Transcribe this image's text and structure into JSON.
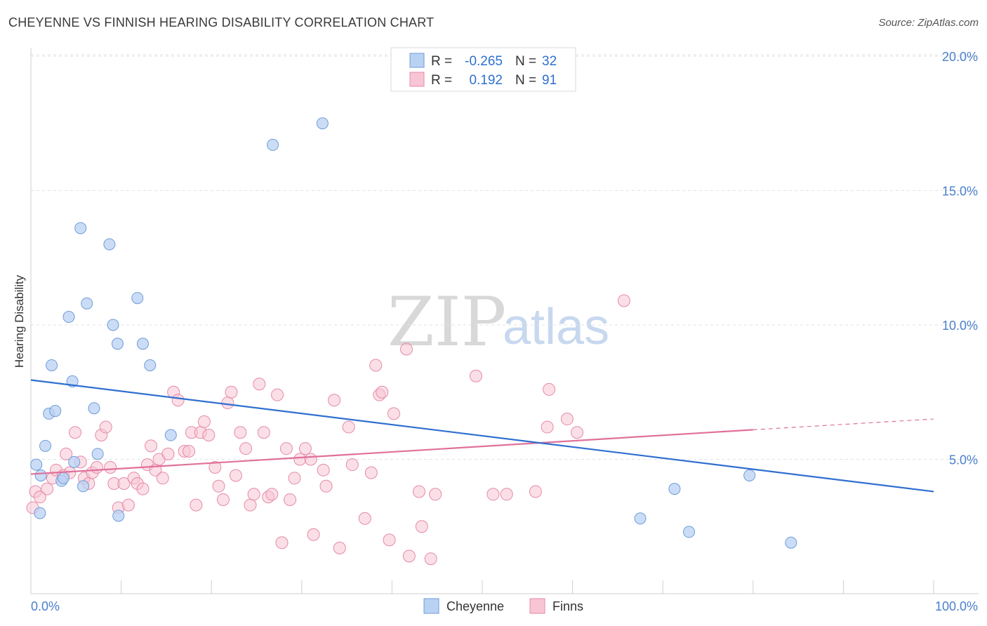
{
  "header": {
    "title": "CHEYENNE VS FINNISH HEARING DISABILITY CORRELATION CHART",
    "source": "Source: ZipAtlas.com"
  },
  "watermark": {
    "zip": "ZIP",
    "atlas": "atlas"
  },
  "legend": {
    "rows": [
      {
        "r_label": "R =",
        "r_value": "-0.265",
        "n_label": "N =",
        "n_value": "32"
      },
      {
        "r_label": "R =",
        "r_value": "0.192",
        "n_label": "N =",
        "n_value": "91"
      }
    ]
  },
  "chart_data": {
    "type": "scatter",
    "title": "CHEYENNE VS FINNISH HEARING DISABILITY CORRELATION CHART",
    "ylabel": "Hearing Disability",
    "xlabel": "",
    "xlim": [
      0,
      100
    ],
    "ylim": [
      0,
      20
    ],
    "x_tick_labels": [
      "0.0%",
      "100.0%"
    ],
    "y_ticks": [
      5,
      10,
      15,
      20
    ],
    "y_tick_labels": [
      "5.0%",
      "10.0%",
      "15.0%",
      "20.0%"
    ],
    "grid": true,
    "legend_position": "top-center",
    "colors": {
      "Cheyenne_fill": "#b9d2f3",
      "Cheyenne_stroke": "#6f9bd8",
      "Cheyenne_line": "#2f6fd0",
      "Finns_fill": "#f8c5d4",
      "Finns_stroke": "#e58aa8",
      "Finns_line": "#e0709a"
    },
    "series": [
      {
        "name": "Cheyenne",
        "r": -0.265,
        "n": 32,
        "trend": {
          "x": [
            0,
            100
          ],
          "y": [
            7.95,
            3.8
          ]
        },
        "points": [
          [
            1.0,
            3.0
          ],
          [
            0.6,
            4.8
          ],
          [
            1.1,
            4.4
          ],
          [
            1.6,
            5.5
          ],
          [
            2.0,
            6.7
          ],
          [
            2.3,
            8.5
          ],
          [
            2.7,
            6.8
          ],
          [
            3.4,
            4.2
          ],
          [
            3.6,
            4.3
          ],
          [
            4.2,
            10.3
          ],
          [
            4.6,
            7.9
          ],
          [
            4.8,
            4.9
          ],
          [
            5.5,
            13.6
          ],
          [
            5.8,
            4.0
          ],
          [
            6.2,
            10.8
          ],
          [
            7.0,
            6.9
          ],
          [
            7.4,
            5.2
          ],
          [
            8.7,
            13.0
          ],
          [
            9.1,
            10.0
          ],
          [
            9.6,
            9.3
          ],
          [
            9.7,
            2.9
          ],
          [
            11.8,
            11.0
          ],
          [
            12.4,
            9.3
          ],
          [
            13.2,
            8.5
          ],
          [
            15.5,
            5.9
          ],
          [
            26.8,
            16.7
          ],
          [
            32.3,
            17.5
          ],
          [
            67.5,
            2.8
          ],
          [
            71.3,
            3.9
          ],
          [
            72.9,
            2.3
          ],
          [
            79.6,
            4.4
          ],
          [
            84.2,
            1.9
          ]
        ]
      },
      {
        "name": "Finns",
        "r": 0.192,
        "n": 91,
        "trend": {
          "x": [
            0,
            80
          ],
          "y": [
            4.45,
            6.1
          ]
        },
        "trend_dashed": {
          "x": [
            80,
            100
          ],
          "y": [
            6.1,
            6.5
          ]
        },
        "points": [
          [
            0.2,
            3.2
          ],
          [
            0.5,
            3.8
          ],
          [
            1.0,
            3.6
          ],
          [
            1.8,
            3.9
          ],
          [
            2.4,
            4.3
          ],
          [
            2.8,
            4.6
          ],
          [
            3.6,
            4.4
          ],
          [
            3.9,
            5.2
          ],
          [
            4.3,
            4.5
          ],
          [
            4.9,
            6.0
          ],
          [
            5.5,
            4.9
          ],
          [
            5.9,
            4.3
          ],
          [
            6.4,
            4.1
          ],
          [
            6.8,
            4.5
          ],
          [
            7.3,
            4.7
          ],
          [
            7.8,
            5.9
          ],
          [
            8.3,
            6.2
          ],
          [
            8.8,
            4.7
          ],
          [
            9.2,
            4.1
          ],
          [
            9.7,
            3.2
          ],
          [
            10.3,
            4.1
          ],
          [
            10.8,
            3.3
          ],
          [
            11.4,
            4.3
          ],
          [
            11.8,
            4.1
          ],
          [
            12.4,
            3.9
          ],
          [
            12.9,
            4.8
          ],
          [
            13.3,
            5.5
          ],
          [
            13.8,
            4.6
          ],
          [
            14.2,
            5.0
          ],
          [
            14.6,
            4.3
          ],
          [
            15.2,
            5.2
          ],
          [
            15.8,
            7.5
          ],
          [
            16.3,
            7.2
          ],
          [
            17.0,
            5.3
          ],
          [
            17.5,
            5.3
          ],
          [
            17.8,
            6.0
          ],
          [
            18.3,
            3.3
          ],
          [
            18.8,
            6.0
          ],
          [
            19.2,
            6.4
          ],
          [
            19.7,
            5.9
          ],
          [
            20.4,
            4.7
          ],
          [
            20.8,
            4.0
          ],
          [
            21.3,
            3.5
          ],
          [
            21.8,
            7.1
          ],
          [
            22.2,
            7.5
          ],
          [
            22.7,
            4.4
          ],
          [
            23.2,
            6.0
          ],
          [
            23.8,
            5.4
          ],
          [
            24.3,
            3.3
          ],
          [
            24.7,
            3.7
          ],
          [
            25.3,
            7.8
          ],
          [
            25.8,
            6.0
          ],
          [
            26.3,
            3.6
          ],
          [
            26.7,
            3.7
          ],
          [
            27.3,
            7.4
          ],
          [
            27.8,
            1.9
          ],
          [
            28.3,
            5.4
          ],
          [
            28.7,
            3.5
          ],
          [
            29.2,
            4.3
          ],
          [
            29.8,
            5.0
          ],
          [
            30.4,
            5.4
          ],
          [
            31.0,
            5.0
          ],
          [
            31.3,
            2.2
          ],
          [
            32.4,
            4.6
          ],
          [
            32.7,
            4.0
          ],
          [
            33.6,
            7.2
          ],
          [
            34.2,
            1.7
          ],
          [
            35.2,
            6.2
          ],
          [
            35.6,
            4.8
          ],
          [
            37.0,
            2.8
          ],
          [
            37.7,
            4.5
          ],
          [
            38.2,
            8.5
          ],
          [
            38.6,
            7.4
          ],
          [
            38.9,
            7.5
          ],
          [
            39.7,
            2.0
          ],
          [
            40.2,
            6.7
          ],
          [
            41.6,
            9.1
          ],
          [
            41.9,
            1.4
          ],
          [
            43.0,
            3.8
          ],
          [
            43.3,
            2.5
          ],
          [
            44.3,
            1.3
          ],
          [
            44.8,
            3.7
          ],
          [
            49.3,
            8.1
          ],
          [
            51.2,
            3.7
          ],
          [
            52.7,
            3.7
          ],
          [
            55.9,
            3.8
          ],
          [
            57.2,
            6.2
          ],
          [
            57.4,
            7.6
          ],
          [
            59.4,
            6.5
          ],
          [
            60.5,
            6.0
          ],
          [
            65.7,
            10.9
          ]
        ]
      }
    ]
  },
  "bottom_legend": {
    "items": [
      "Cheyenne",
      "Finns"
    ]
  }
}
